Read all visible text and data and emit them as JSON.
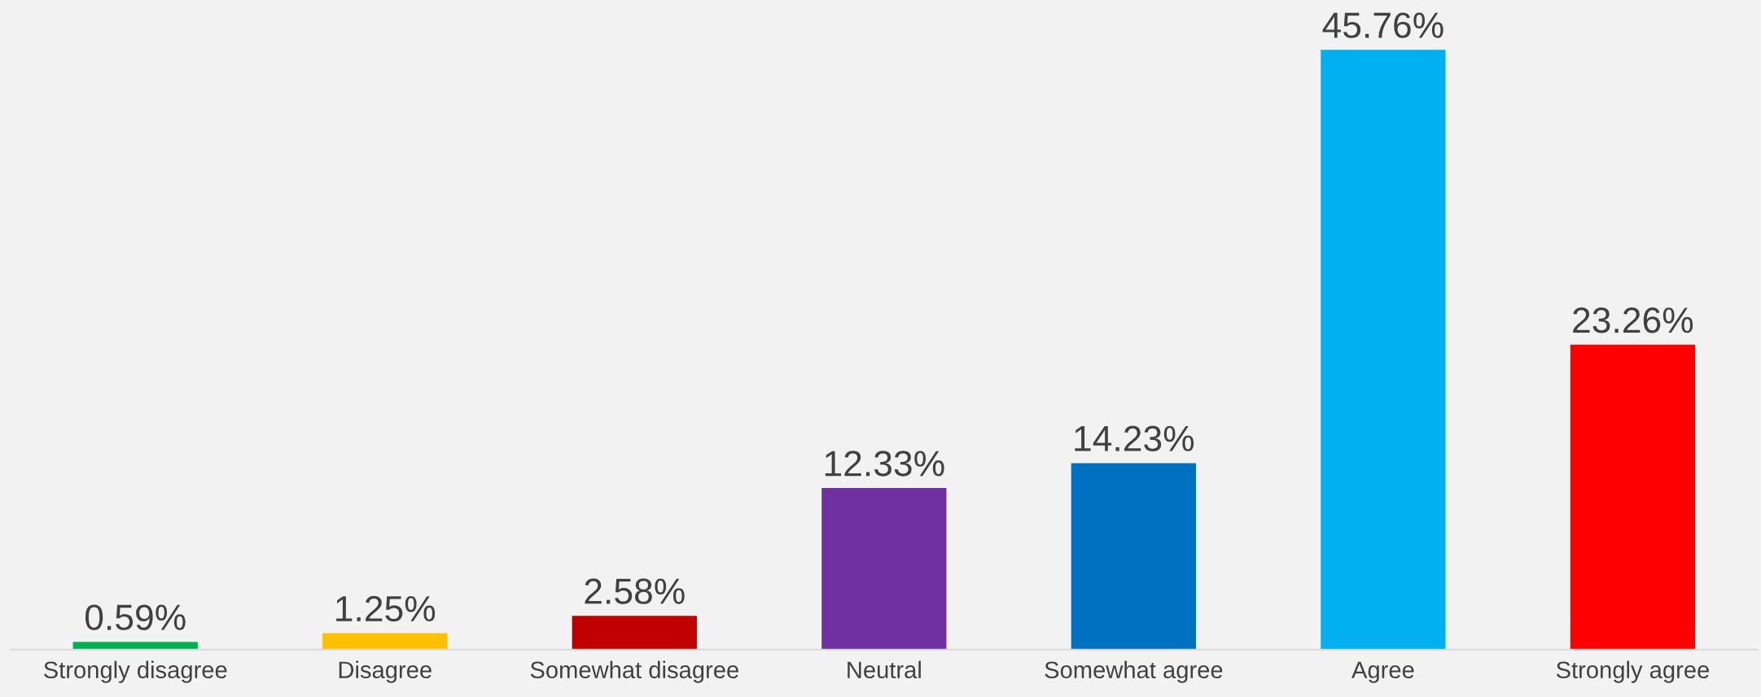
{
  "chart_data": {
    "type": "bar",
    "categories": [
      "Strongly disagree",
      "Disagree",
      "Somewhat disagree",
      "Neutral",
      "Somewhat agree",
      "Agree",
      "Strongly agree"
    ],
    "values": [
      0.59,
      1.25,
      2.58,
      12.33,
      14.23,
      45.76,
      23.26
    ],
    "colors": [
      "#00b050",
      "#ffc000",
      "#c00000",
      "#7030a0",
      "#0070c0",
      "#00b0f0",
      "#ff0000"
    ],
    "value_labels": [
      "0.59%",
      "1.25%",
      "2.58%",
      "12.33%",
      "14.23%",
      "45.76%",
      "23.26%"
    ],
    "grid": false,
    "legend": false
  }
}
